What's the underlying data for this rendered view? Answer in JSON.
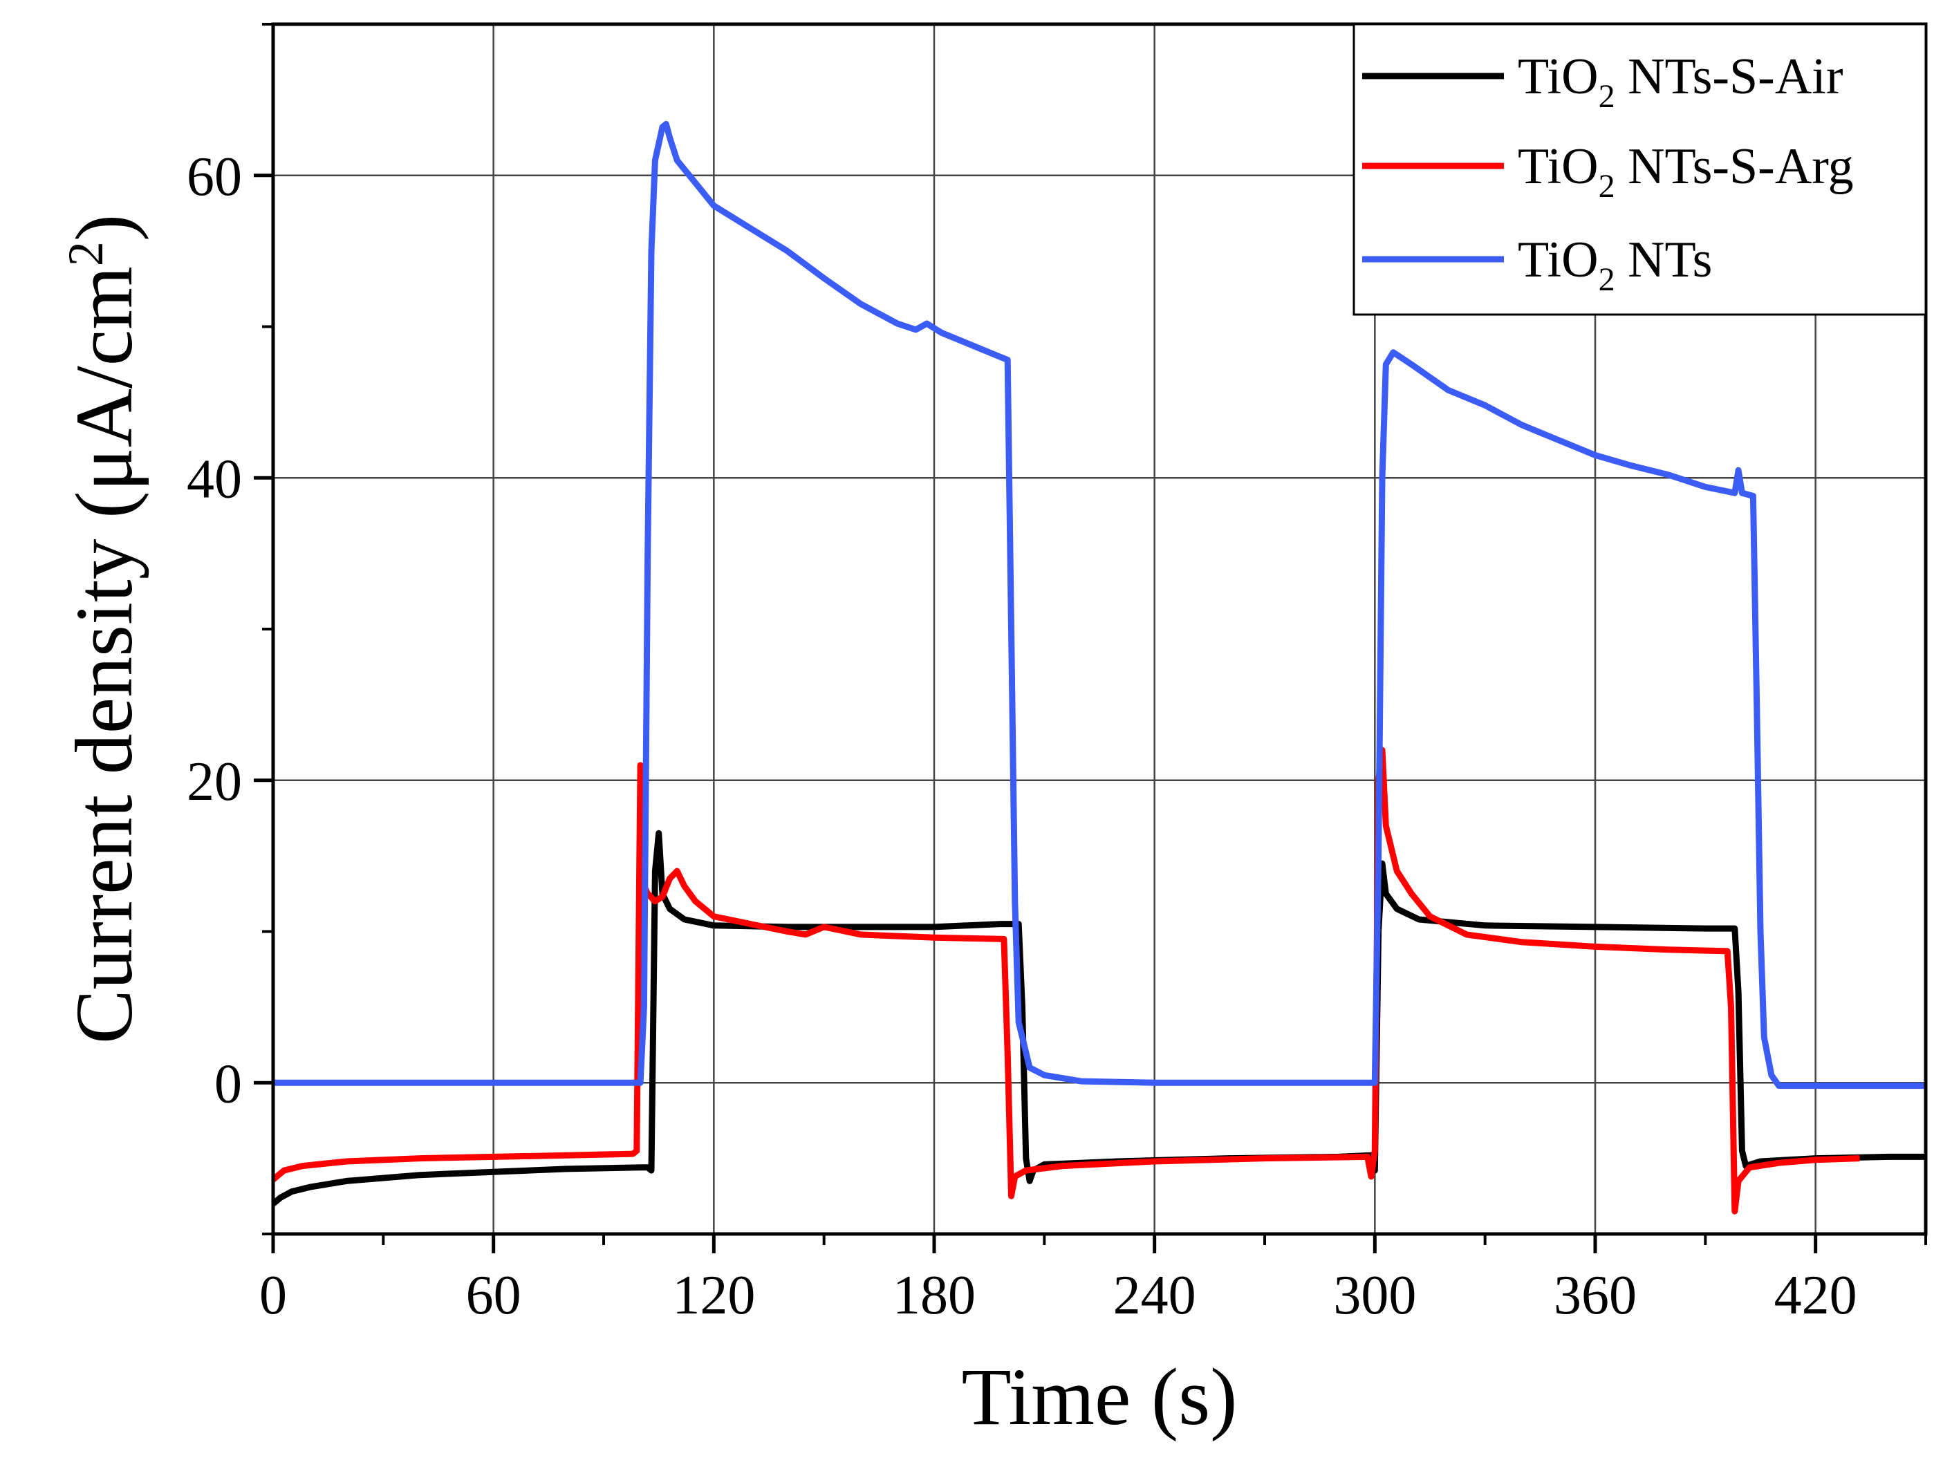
{
  "chart_data": {
    "type": "line",
    "title": "",
    "xlabel": "Time (s)",
    "ylabel": {
      "prefix": "Current density (μA/cm",
      "sup": "2",
      "suffix": ")"
    },
    "xlim": [
      0,
      450
    ],
    "ylim": [
      -10,
      70
    ],
    "xticks": [
      0,
      60,
      120,
      180,
      240,
      300,
      360,
      420
    ],
    "xtick_labels": [
      "0",
      "60",
      "120",
      "180",
      "240",
      "300",
      "360",
      "420"
    ],
    "yticks": [
      0,
      20,
      40,
      60
    ],
    "ytick_labels": [
      "0",
      "20",
      "40",
      "60"
    ],
    "grid": true,
    "legend_position": "top-right",
    "series": [
      {
        "name": "TiO2 NTs-S-Air",
        "legend": {
          "base": "TiO",
          "sub": "2",
          "rest": " NTs-S-Air"
        },
        "color": "#000000",
        "points": [
          [
            0,
            -8.0
          ],
          [
            2,
            -7.6
          ],
          [
            5,
            -7.2
          ],
          [
            10,
            -6.9
          ],
          [
            20,
            -6.5
          ],
          [
            40,
            -6.1
          ],
          [
            60,
            -5.9
          ],
          [
            80,
            -5.7
          ],
          [
            100,
            -5.6
          ],
          [
            102,
            -5.6
          ],
          [
            103,
            -5.8
          ],
          [
            104,
            14.0
          ],
          [
            105,
            16.5
          ],
          [
            106,
            12.5
          ],
          [
            108,
            11.5
          ],
          [
            112,
            10.8
          ],
          [
            120,
            10.4
          ],
          [
            140,
            10.3
          ],
          [
            160,
            10.3
          ],
          [
            180,
            10.3
          ],
          [
            198,
            10.5
          ],
          [
            203,
            10.5
          ],
          [
            204,
            5.0
          ],
          [
            205,
            -5.0
          ],
          [
            206,
            -6.5
          ],
          [
            207,
            -5.8
          ],
          [
            210,
            -5.4
          ],
          [
            230,
            -5.2
          ],
          [
            260,
            -5.0
          ],
          [
            290,
            -4.9
          ],
          [
            299,
            -4.8
          ],
          [
            300,
            -5.8
          ],
          [
            301,
            10.0
          ],
          [
            302,
            14.5
          ],
          [
            303,
            12.5
          ],
          [
            306,
            11.5
          ],
          [
            312,
            10.8
          ],
          [
            330,
            10.4
          ],
          [
            360,
            10.3
          ],
          [
            390,
            10.2
          ],
          [
            398,
            10.2
          ],
          [
            399,
            6.0
          ],
          [
            400,
            -4.5
          ],
          [
            401,
            -5.5
          ],
          [
            405,
            -5.2
          ],
          [
            420,
            -5.0
          ],
          [
            440,
            -4.9
          ],
          [
            450,
            -4.9
          ]
        ]
      },
      {
        "name": "TiO2 NTs-S-Arg",
        "legend": {
          "base": "TiO",
          "sub": "2",
          "rest": " NTs-S-Arg"
        },
        "color": "#ff0000",
        "points": [
          [
            0,
            -6.4
          ],
          [
            3,
            -5.8
          ],
          [
            8,
            -5.5
          ],
          [
            20,
            -5.2
          ],
          [
            40,
            -5.0
          ],
          [
            60,
            -4.9
          ],
          [
            80,
            -4.8
          ],
          [
            98,
            -4.7
          ],
          [
            99,
            -4.5
          ],
          [
            100,
            21.0
          ],
          [
            101,
            13.0
          ],
          [
            102,
            12.5
          ],
          [
            104,
            12.0
          ],
          [
            106,
            12.3
          ],
          [
            108,
            13.5
          ],
          [
            110,
            14.0
          ],
          [
            112,
            13.0
          ],
          [
            115,
            12.0
          ],
          [
            120,
            11.0
          ],
          [
            130,
            10.5
          ],
          [
            140,
            10.0
          ],
          [
            145,
            9.8
          ],
          [
            150,
            10.3
          ],
          [
            160,
            9.8
          ],
          [
            180,
            9.6
          ],
          [
            199,
            9.5
          ],
          [
            200,
            2.0
          ],
          [
            201,
            -7.5
          ],
          [
            202,
            -6.2
          ],
          [
            205,
            -5.8
          ],
          [
            215,
            -5.5
          ],
          [
            240,
            -5.2
          ],
          [
            270,
            -5.0
          ],
          [
            298,
            -4.9
          ],
          [
            299,
            -6.2
          ],
          [
            300,
            -4.5
          ],
          [
            301,
            20.0
          ],
          [
            302,
            22.0
          ],
          [
            303,
            17.0
          ],
          [
            306,
            14.0
          ],
          [
            310,
            12.5
          ],
          [
            315,
            11.0
          ],
          [
            325,
            9.8
          ],
          [
            340,
            9.3
          ],
          [
            360,
            9.0
          ],
          [
            380,
            8.8
          ],
          [
            396,
            8.7
          ],
          [
            397,
            5.0
          ],
          [
            398,
            -8.5
          ],
          [
            399,
            -6.5
          ],
          [
            402,
            -5.6
          ],
          [
            410,
            -5.3
          ],
          [
            420,
            -5.1
          ],
          [
            432,
            -5.0
          ]
        ]
      },
      {
        "name": "TiO2 NTs",
        "legend": {
          "base": "TiO",
          "sub": "2",
          "rest": " NTs"
        },
        "color": "#3b5cf5",
        "points": [
          [
            0,
            0
          ],
          [
            100,
            0
          ],
          [
            101,
            5.0
          ],
          [
            102,
            35.0
          ],
          [
            103,
            55.0
          ],
          [
            104,
            61.0
          ],
          [
            106,
            63.2
          ],
          [
            107,
            63.4
          ],
          [
            108,
            62.5
          ],
          [
            110,
            61.0
          ],
          [
            115,
            59.5
          ],
          [
            120,
            58.0
          ],
          [
            130,
            56.5
          ],
          [
            140,
            55.0
          ],
          [
            150,
            53.2
          ],
          [
            160,
            51.5
          ],
          [
            170,
            50.2
          ],
          [
            175,
            49.8
          ],
          [
            178,
            50.2
          ],
          [
            182,
            49.6
          ],
          [
            190,
            48.8
          ],
          [
            198,
            48.0
          ],
          [
            200,
            47.8
          ],
          [
            201,
            30.0
          ],
          [
            202,
            12.0
          ],
          [
            203,
            4.0
          ],
          [
            206,
            1.0
          ],
          [
            210,
            0.5
          ],
          [
            220,
            0.1
          ],
          [
            240,
            0
          ],
          [
            300,
            0
          ],
          [
            301,
            15.0
          ],
          [
            302,
            40.0
          ],
          [
            303,
            47.5
          ],
          [
            305,
            48.3
          ],
          [
            310,
            47.5
          ],
          [
            320,
            45.8
          ],
          [
            330,
            44.8
          ],
          [
            340,
            43.5
          ],
          [
            350,
            42.5
          ],
          [
            360,
            41.5
          ],
          [
            370,
            40.8
          ],
          [
            380,
            40.2
          ],
          [
            390,
            39.4
          ],
          [
            398,
            39.0
          ],
          [
            399,
            40.5
          ],
          [
            400,
            39.0
          ],
          [
            403,
            38.8
          ],
          [
            404,
            25.0
          ],
          [
            405,
            10.0
          ],
          [
            406,
            3.0
          ],
          [
            408,
            0.5
          ],
          [
            410,
            -0.2
          ],
          [
            420,
            -0.2
          ],
          [
            450,
            -0.2
          ]
        ]
      }
    ]
  }
}
